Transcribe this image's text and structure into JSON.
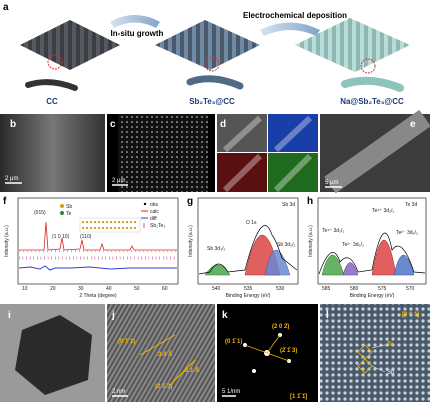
{
  "panel_a": {
    "label": "a",
    "arrows": [
      "In-situ growth",
      "Electrochemical deposition"
    ],
    "samples": [
      "CC",
      "Sb₂Te₃@CC",
      "Na@Sb₂Te₃@CC"
    ]
  },
  "panel_b": {
    "label": "b",
    "scale_bar": "2 μm"
  },
  "panel_c": {
    "label": "c",
    "scale_bar": "2 μm"
  },
  "panel_d": {
    "label": "d"
  },
  "panel_e": {
    "label": "e",
    "scale_bar": "5 μm"
  },
  "panel_f": {
    "label": "f",
    "legend": [
      "obs",
      "calc",
      "diff",
      "Sb₂Te₃"
    ],
    "atoms": [
      "Sb",
      "Te"
    ],
    "peaks": [
      "(015)",
      "(1 0 10)",
      "(110)"
    ],
    "y_label": "Intensity (a.u.)",
    "x_label": "2 Theta (degree)",
    "x_ticks": [
      "10",
      "20",
      "30",
      "40",
      "50",
      "60"
    ]
  },
  "panel_g": {
    "label": "g",
    "title": "Sb 3d",
    "peaks": [
      "O 1s",
      "Sb 3d₃/₂",
      "Sb 3d₅/₂"
    ],
    "y_label": "Intensity (a.u.)",
    "x_label": "Binding Energy (eV)",
    "x_ticks": [
      "540",
      "535",
      "530"
    ]
  },
  "panel_h": {
    "label": "h",
    "title": "Te 3d",
    "peaks": [
      "Te⁴⁺ 3d₃/₂",
      "Te²⁻ 3d₃/₂",
      "Te⁴⁺ 3d₅/₂",
      "Te²⁻ 3d₅/₂"
    ],
    "y_label": "Intensity (a.u.)",
    "x_label": "Binding Energy (eV)",
    "x_ticks": [
      "585",
      "580",
      "575",
      "570"
    ]
  },
  "panel_i": {
    "label": "i"
  },
  "panel_j": {
    "label": "j",
    "planes": [
      "(0 1̄ 1)",
      "(2 1̄ 3)"
    ],
    "spacings": [
      "3.4 Å",
      "2.1 Å"
    ],
    "scale_bar": "2 nm"
  },
  "panel_k": {
    "label": "k",
    "planes": [
      "(2 0 2̄)",
      "(0 1̄ 1)",
      "(2̄ 1̄ 3)"
    ],
    "zone": "[1 1̄ 1̄]",
    "scale_bar": "5 1/nm"
  },
  "panel_l": {
    "label": "l",
    "zone": "[0 0 1]",
    "atoms": [
      "Te",
      "Sb"
    ]
  }
}
